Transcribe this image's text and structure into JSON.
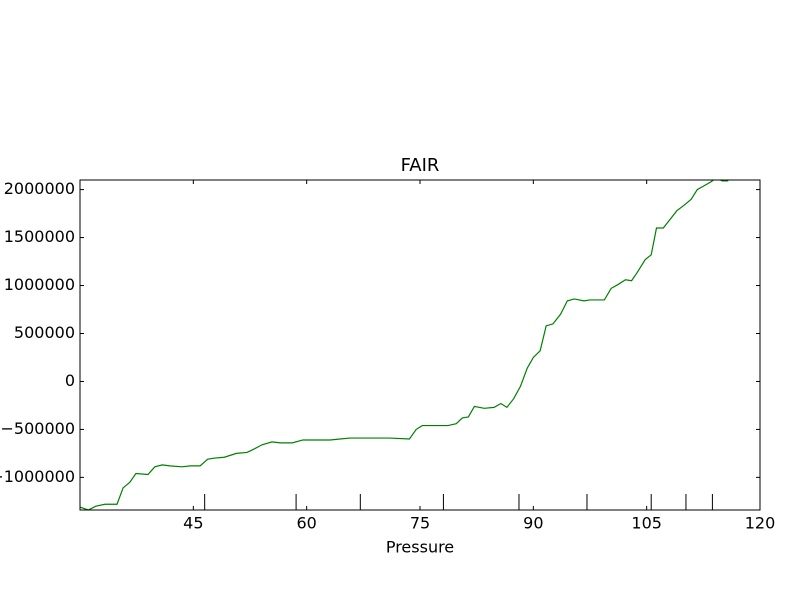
{
  "chart_data": {
    "type": "line",
    "title": "FAIR",
    "xlabel": "Pressure",
    "x": [
      30.0,
      31.1,
      32.1,
      33.3,
      34.9,
      35.7,
      36.6,
      37.4,
      39.0,
      39.9,
      40.9,
      41.9,
      43.5,
      44.6,
      45.9,
      46.9,
      47.7,
      49.1,
      50.7,
      52.1,
      52.9,
      54.1,
      55.4,
      56.5,
      58.1,
      59.5,
      60.8,
      63.1,
      64.4,
      65.7,
      68.4,
      71.0,
      73.6,
      74.5,
      75.3,
      77.1,
      78.7,
      79.8,
      80.6,
      81.4,
      82.2,
      83.5,
      84.8,
      85.7,
      86.5,
      87.4,
      88.3,
      89.2,
      90.0,
      90.9,
      91.7,
      92.6,
      93.6,
      94.5,
      95.4,
      96.7,
      97.5,
      99.4,
      100.3,
      101.2,
      102.2,
      103.0,
      103.7,
      104.8,
      105.6,
      106.3,
      107.2,
      108.1,
      109.0,
      110.0,
      110.9,
      111.7,
      112.6,
      113.5,
      114.2,
      115.0,
      115.8
    ],
    "series": [
      {
        "name": "FAIR",
        "color": "#008000",
        "values": [
          -1310000,
          -1340000,
          -1300000,
          -1280000,
          -1280000,
          -1110000,
          -1050000,
          -960000,
          -970000,
          -890000,
          -870000,
          -880000,
          -890000,
          -880000,
          -880000,
          -810000,
          -800000,
          -790000,
          -750000,
          -740000,
          -710000,
          -660000,
          -630000,
          -640000,
          -640000,
          -610000,
          -610000,
          -610000,
          -600000,
          -590000,
          -590000,
          -590000,
          -600000,
          -500000,
          -460000,
          -460000,
          -460000,
          -440000,
          -380000,
          -370000,
          -260000,
          -280000,
          -270000,
          -230000,
          -270000,
          -180000,
          -50000,
          140000,
          250000,
          320000,
          580000,
          600000,
          700000,
          840000,
          860000,
          840000,
          850000,
          850000,
          970000,
          1010000,
          1060000,
          1050000,
          1130000,
          1270000,
          1320000,
          1600000,
          1600000,
          1690000,
          1780000,
          1840000,
          1900000,
          2000000,
          2040000,
          2080000,
          2120000,
          2090000,
          2090000
        ]
      }
    ],
    "xlim": [
      30,
      120
    ],
    "xticks": [
      45,
      60,
      75,
      90,
      105,
      120
    ],
    "xmarkers": [
      46.5,
      58.6,
      67.1,
      78.1,
      88.1,
      97.1,
      105.6,
      110.2,
      113.7
    ],
    "ylim": [
      -1340000,
      2100000
    ],
    "yticks": [
      {
        "value": -1000000,
        "label": "−1000000"
      },
      {
        "value": -500000,
        "label": "−500000"
      },
      0,
      500000,
      1000000,
      1500000,
      2000000
    ]
  }
}
